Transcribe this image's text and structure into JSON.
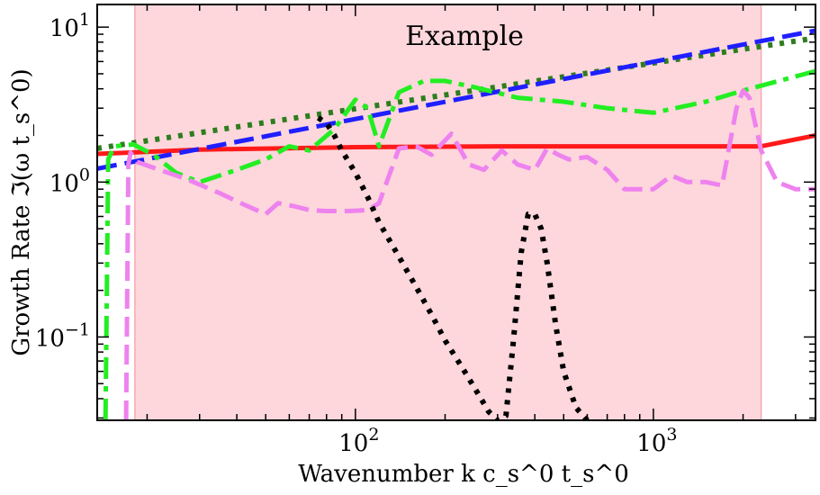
{
  "chart_data": {
    "type": "line",
    "title": "Example",
    "xlabel": "Wavenumber  k c_s^0 t_s^0",
    "ylabel": "Growth Rate  ℑ(ω t_s^0)",
    "xscale": "log",
    "yscale": "log",
    "xlim": [
      13.6,
      3500
    ],
    "ylim": [
      0.029,
      14
    ],
    "xticks": [
      {
        "value": 100,
        "base": "10",
        "exp": "2"
      },
      {
        "value": 1000,
        "base": "10",
        "exp": "3"
      }
    ],
    "yticks": [
      {
        "value": 0.1,
        "base": "10",
        "exp": "−1"
      },
      {
        "value": 1,
        "base": "10",
        "exp": "0"
      },
      {
        "value": 10,
        "base": "10",
        "exp": "1"
      }
    ],
    "shaded_region": {
      "x": [
        18.2,
        2300
      ],
      "color": "#fdd7dc",
      "edge_color": "#f5a9b2"
    },
    "series": [
      {
        "name": "solid-red",
        "color": "#ff1a1a",
        "dash": "solid",
        "width": 5,
        "x": [
          13.6,
          30,
          100,
          300,
          1000,
          2300,
          3500
        ],
        "y": [
          1.52,
          1.62,
          1.68,
          1.7,
          1.7,
          1.7,
          2.0
        ]
      },
      {
        "name": "dotted-darkgreen",
        "color": "#2e7d1e",
        "dash": "dotted",
        "width": 6,
        "x": [
          13.6,
          3500
        ],
        "y": [
          1.65,
          8.5
        ]
      },
      {
        "name": "dashed-blue",
        "color": "#1f1fff",
        "dash": "dashed",
        "width": 5,
        "x": [
          13.6,
          3500
        ],
        "y": [
          1.22,
          9.5
        ]
      },
      {
        "name": "dashdot-green",
        "color": "#22ee22",
        "dash": "dashdot",
        "width": 5,
        "x": [
          14.5,
          14.8,
          15.5,
          18,
          21,
          25,
          30,
          40,
          50,
          60,
          70,
          85,
          100,
          110,
          120,
          140,
          170,
          200,
          250,
          350,
          500,
          700,
          1000,
          1500,
          2000,
          3500
        ],
        "y": [
          0.029,
          1.4,
          1.7,
          1.75,
          1.5,
          1.15,
          1.0,
          1.2,
          1.4,
          1.7,
          1.6,
          2.2,
          3.4,
          3.0,
          1.7,
          3.8,
          4.5,
          4.5,
          4.1,
          3.5,
          3.3,
          3.0,
          2.8,
          3.3,
          3.9,
          5.2
        ]
      },
      {
        "name": "dashed-violet",
        "color": "#ee82ee",
        "dash": "dashed",
        "width": 5,
        "x": [
          17,
          17.3,
          17.6,
          18.5,
          22,
          27,
          35,
          42,
          50,
          55,
          62,
          70,
          80,
          95,
          110,
          120,
          140,
          160,
          180,
          210,
          240,
          270,
          310,
          350,
          400,
          440,
          480,
          520,
          600,
          700,
          800,
          900,
          1000,
          1150,
          1300,
          1500,
          1700,
          1900,
          2000,
          2100,
          2300,
          2600,
          3000,
          3500
        ],
        "y": [
          0.029,
          1.3,
          1.55,
          1.35,
          1.2,
          1.05,
          0.85,
          0.72,
          0.62,
          0.73,
          0.7,
          0.66,
          0.65,
          0.65,
          0.66,
          0.73,
          1.65,
          1.7,
          1.5,
          2.05,
          1.3,
          1.2,
          1.6,
          1.3,
          1.2,
          1.65,
          1.5,
          1.4,
          1.45,
          1.2,
          0.9,
          0.9,
          0.9,
          1.1,
          1.0,
          1.0,
          0.95,
          3.0,
          3.9,
          3.5,
          1.6,
          1.0,
          0.9,
          0.9
        ]
      },
      {
        "name": "dotted-black",
        "color": "#000000",
        "dash": "dotted",
        "width": 6,
        "x": [
          75,
          80,
          85,
          90,
          100,
          110,
          120,
          140,
          160,
          180,
          200,
          230,
          260,
          280,
          300,
          320,
          340,
          360,
          380,
          400,
          420,
          440,
          470,
          500,
          550,
          600
        ],
        "y": [
          2.6,
          2.4,
          2.0,
          1.6,
          1.15,
          0.8,
          0.55,
          0.33,
          0.21,
          0.14,
          0.095,
          0.062,
          0.042,
          0.033,
          0.029,
          0.031,
          0.1,
          0.35,
          0.62,
          0.62,
          0.5,
          0.3,
          0.12,
          0.06,
          0.035,
          0.029
        ]
      }
    ]
  }
}
